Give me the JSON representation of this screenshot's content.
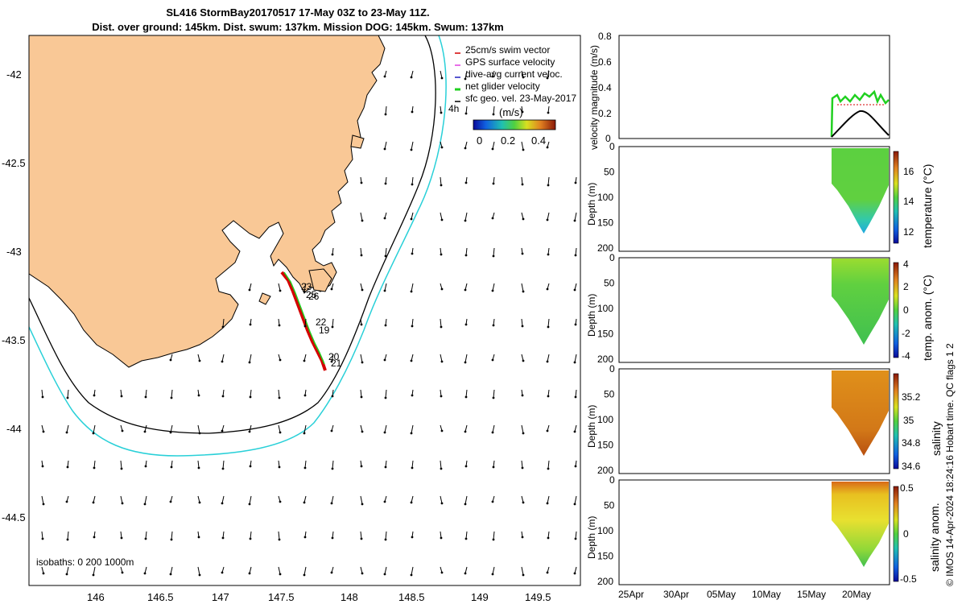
{
  "title": {
    "line1": "SL416 StormBay20170517 17-May 03Z to 23-May 11Z.",
    "line2": "Dist. over ground: 145km. Dist. swum: 137km. Mission DOG: 145km. Swum: 137km"
  },
  "map": {
    "lon_ticks": [
      "146",
      "146.5",
      "147",
      "147.5",
      "148",
      "148.5",
      "149",
      "149.5"
    ],
    "lat_ticks": [
      "-42",
      "-42.5",
      "-43",
      "-43.5",
      "-44",
      "-44.5"
    ],
    "legend": [
      {
        "label": "25cm/s swim vector",
        "color": "#d40000"
      },
      {
        "label": "GPS surface velocity",
        "color": "#e040e0"
      },
      {
        "label": "dive-avg current veloc.",
        "color": "#2020c0"
      },
      {
        "label": "net glider velocity",
        "color": "#20d020"
      },
      {
        "label": "sfc geo. vel. 23-May-2017",
        "color": "#000000"
      }
    ],
    "legend_extra": "4h",
    "colorbar": {
      "title": "(m/s)",
      "ticks": [
        "0",
        "0.2",
        "0.4"
      ]
    },
    "track_labels": [
      "23",
      "25",
      "26",
      "22",
      "19",
      "20",
      "21"
    ],
    "isobaths_label": "isobaths: 0   200  1000m",
    "land_color": "#f9c896",
    "isobath_1000_color": "#29d0d8"
  },
  "panels": {
    "velocity": {
      "ylabel": "velocity magnitude (m/s)",
      "yticks": [
        "0",
        "0.2",
        "0.4",
        "0.6",
        "0.8"
      ]
    },
    "depth_yticks": [
      "0",
      "50",
      "100",
      "150",
      "200"
    ],
    "depth_ylabel": "Depth (m)",
    "temperature": {
      "cb_label": "temperature (°C)",
      "cb_ticks": [
        "12",
        "14",
        "16"
      ]
    },
    "temp_anom": {
      "cb_label": "temp. anom. (°C)",
      "cb_ticks": [
        "-4",
        "-2",
        "0",
        "2",
        "4"
      ]
    },
    "salinity": {
      "cb_label": "salinity",
      "cb_ticks": [
        "34.6",
        "34.8",
        "35",
        "35.2"
      ]
    },
    "sal_anom": {
      "cb_label": "salinity anom.",
      "cb_ticks": [
        "-0.5",
        "0",
        "0.5"
      ]
    },
    "xticks": [
      "25Apr",
      "30Apr",
      "05May",
      "10May",
      "15May",
      "20May"
    ]
  },
  "side_note": "© IMOS 14-Apr-2024 18:24:16 Hobart time. QC flags 1  2"
}
